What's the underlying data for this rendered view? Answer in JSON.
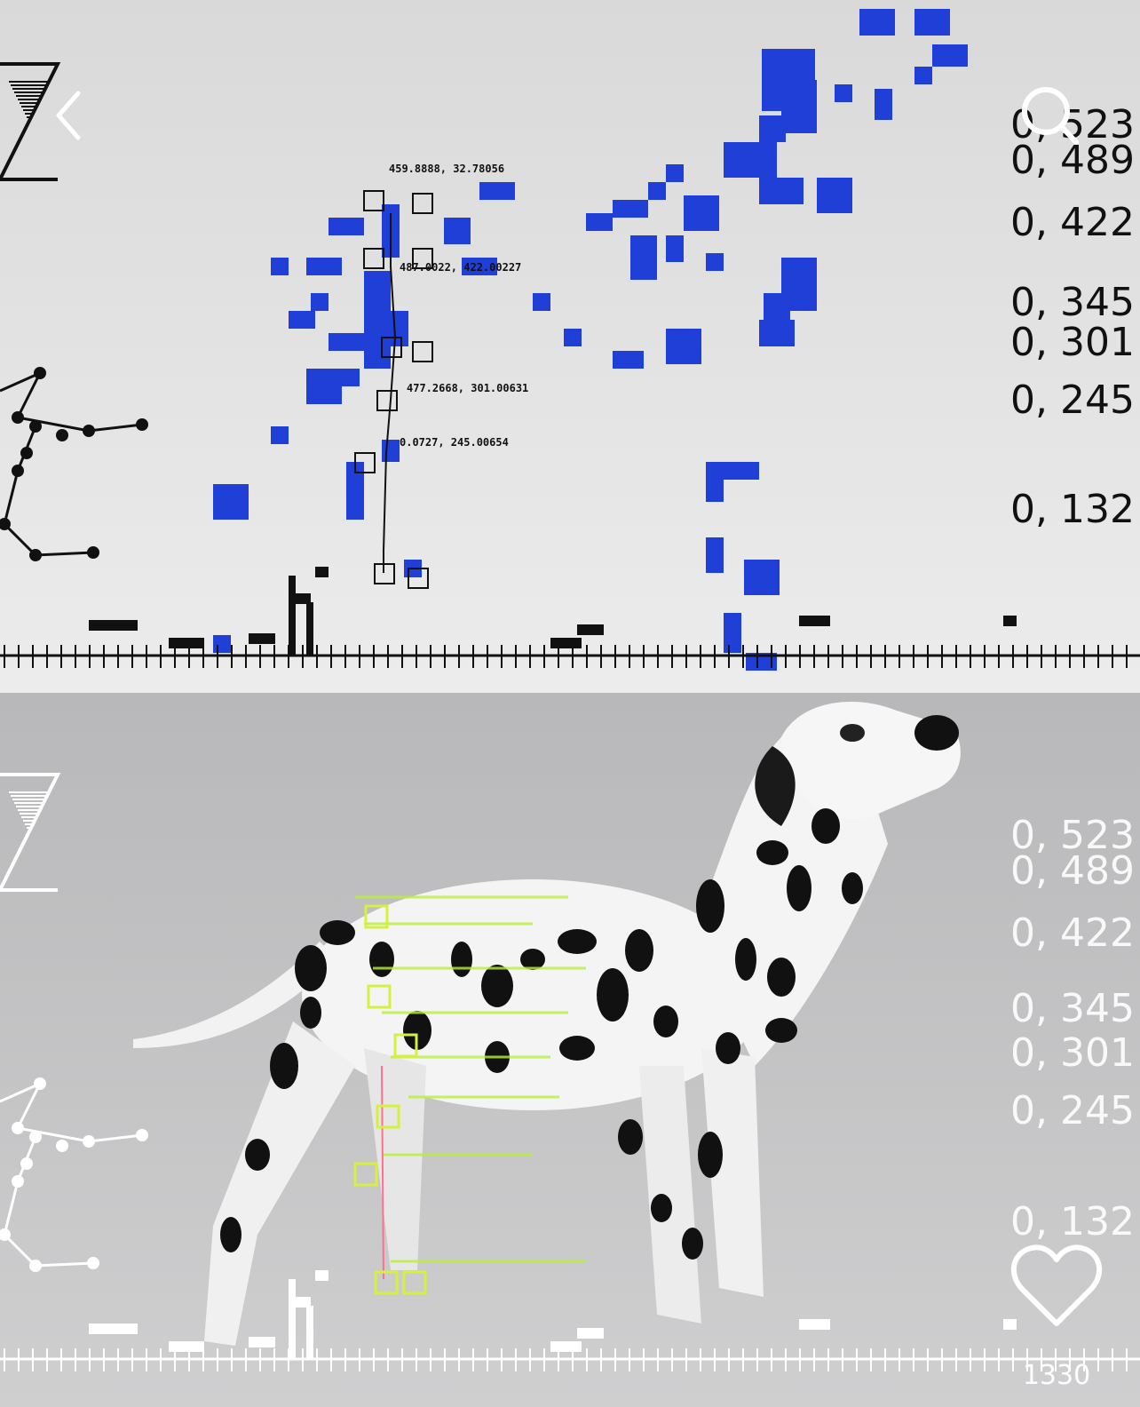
{
  "overlay_labels": [
    "0, 523",
    "0, 489",
    "0, 422",
    "0, 345",
    "0, 301",
    "0, 245",
    "0, 132"
  ],
  "annotations": [
    "459.8888, 32.78056",
    "487.0022, 422.00227",
    "477.2668, 301.00631",
    "0.0727, 245.00654"
  ],
  "like_count": "1330"
}
